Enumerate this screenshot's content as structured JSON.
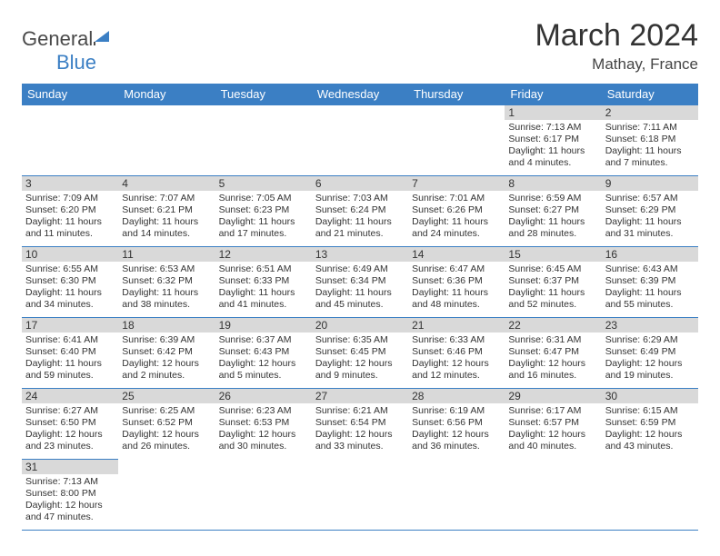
{
  "logo": {
    "text1": "General",
    "text2": "Blue"
  },
  "title": "March 2024",
  "location": "Mathay, France",
  "colors": {
    "header_bg": "#3b7fc4",
    "header_text": "#ffffff",
    "daynum_bg": "#d9d9d9",
    "border": "#3b7fc4",
    "text": "#333333"
  },
  "weekdays": [
    "Sunday",
    "Monday",
    "Tuesday",
    "Wednesday",
    "Thursday",
    "Friday",
    "Saturday"
  ],
  "weeks": [
    [
      null,
      null,
      null,
      null,
      null,
      {
        "n": "1",
        "sr": "Sunrise: 7:13 AM",
        "ss": "Sunset: 6:17 PM",
        "dl": "Daylight: 11 hours and 4 minutes."
      },
      {
        "n": "2",
        "sr": "Sunrise: 7:11 AM",
        "ss": "Sunset: 6:18 PM",
        "dl": "Daylight: 11 hours and 7 minutes."
      }
    ],
    [
      {
        "n": "3",
        "sr": "Sunrise: 7:09 AM",
        "ss": "Sunset: 6:20 PM",
        "dl": "Daylight: 11 hours and 11 minutes."
      },
      {
        "n": "4",
        "sr": "Sunrise: 7:07 AM",
        "ss": "Sunset: 6:21 PM",
        "dl": "Daylight: 11 hours and 14 minutes."
      },
      {
        "n": "5",
        "sr": "Sunrise: 7:05 AM",
        "ss": "Sunset: 6:23 PM",
        "dl": "Daylight: 11 hours and 17 minutes."
      },
      {
        "n": "6",
        "sr": "Sunrise: 7:03 AM",
        "ss": "Sunset: 6:24 PM",
        "dl": "Daylight: 11 hours and 21 minutes."
      },
      {
        "n": "7",
        "sr": "Sunrise: 7:01 AM",
        "ss": "Sunset: 6:26 PM",
        "dl": "Daylight: 11 hours and 24 minutes."
      },
      {
        "n": "8",
        "sr": "Sunrise: 6:59 AM",
        "ss": "Sunset: 6:27 PM",
        "dl": "Daylight: 11 hours and 28 minutes."
      },
      {
        "n": "9",
        "sr": "Sunrise: 6:57 AM",
        "ss": "Sunset: 6:29 PM",
        "dl": "Daylight: 11 hours and 31 minutes."
      }
    ],
    [
      {
        "n": "10",
        "sr": "Sunrise: 6:55 AM",
        "ss": "Sunset: 6:30 PM",
        "dl": "Daylight: 11 hours and 34 minutes."
      },
      {
        "n": "11",
        "sr": "Sunrise: 6:53 AM",
        "ss": "Sunset: 6:32 PM",
        "dl": "Daylight: 11 hours and 38 minutes."
      },
      {
        "n": "12",
        "sr": "Sunrise: 6:51 AM",
        "ss": "Sunset: 6:33 PM",
        "dl": "Daylight: 11 hours and 41 minutes."
      },
      {
        "n": "13",
        "sr": "Sunrise: 6:49 AM",
        "ss": "Sunset: 6:34 PM",
        "dl": "Daylight: 11 hours and 45 minutes."
      },
      {
        "n": "14",
        "sr": "Sunrise: 6:47 AM",
        "ss": "Sunset: 6:36 PM",
        "dl": "Daylight: 11 hours and 48 minutes."
      },
      {
        "n": "15",
        "sr": "Sunrise: 6:45 AM",
        "ss": "Sunset: 6:37 PM",
        "dl": "Daylight: 11 hours and 52 minutes."
      },
      {
        "n": "16",
        "sr": "Sunrise: 6:43 AM",
        "ss": "Sunset: 6:39 PM",
        "dl": "Daylight: 11 hours and 55 minutes."
      }
    ],
    [
      {
        "n": "17",
        "sr": "Sunrise: 6:41 AM",
        "ss": "Sunset: 6:40 PM",
        "dl": "Daylight: 11 hours and 59 minutes."
      },
      {
        "n": "18",
        "sr": "Sunrise: 6:39 AM",
        "ss": "Sunset: 6:42 PM",
        "dl": "Daylight: 12 hours and 2 minutes."
      },
      {
        "n": "19",
        "sr": "Sunrise: 6:37 AM",
        "ss": "Sunset: 6:43 PM",
        "dl": "Daylight: 12 hours and 5 minutes."
      },
      {
        "n": "20",
        "sr": "Sunrise: 6:35 AM",
        "ss": "Sunset: 6:45 PM",
        "dl": "Daylight: 12 hours and 9 minutes."
      },
      {
        "n": "21",
        "sr": "Sunrise: 6:33 AM",
        "ss": "Sunset: 6:46 PM",
        "dl": "Daylight: 12 hours and 12 minutes."
      },
      {
        "n": "22",
        "sr": "Sunrise: 6:31 AM",
        "ss": "Sunset: 6:47 PM",
        "dl": "Daylight: 12 hours and 16 minutes."
      },
      {
        "n": "23",
        "sr": "Sunrise: 6:29 AM",
        "ss": "Sunset: 6:49 PM",
        "dl": "Daylight: 12 hours and 19 minutes."
      }
    ],
    [
      {
        "n": "24",
        "sr": "Sunrise: 6:27 AM",
        "ss": "Sunset: 6:50 PM",
        "dl": "Daylight: 12 hours and 23 minutes."
      },
      {
        "n": "25",
        "sr": "Sunrise: 6:25 AM",
        "ss": "Sunset: 6:52 PM",
        "dl": "Daylight: 12 hours and 26 minutes."
      },
      {
        "n": "26",
        "sr": "Sunrise: 6:23 AM",
        "ss": "Sunset: 6:53 PM",
        "dl": "Daylight: 12 hours and 30 minutes."
      },
      {
        "n": "27",
        "sr": "Sunrise: 6:21 AM",
        "ss": "Sunset: 6:54 PM",
        "dl": "Daylight: 12 hours and 33 minutes."
      },
      {
        "n": "28",
        "sr": "Sunrise: 6:19 AM",
        "ss": "Sunset: 6:56 PM",
        "dl": "Daylight: 12 hours and 36 minutes."
      },
      {
        "n": "29",
        "sr": "Sunrise: 6:17 AM",
        "ss": "Sunset: 6:57 PM",
        "dl": "Daylight: 12 hours and 40 minutes."
      },
      {
        "n": "30",
        "sr": "Sunrise: 6:15 AM",
        "ss": "Sunset: 6:59 PM",
        "dl": "Daylight: 12 hours and 43 minutes."
      }
    ],
    [
      {
        "n": "31",
        "sr": "Sunrise: 7:13 AM",
        "ss": "Sunset: 8:00 PM",
        "dl": "Daylight: 12 hours and 47 minutes."
      },
      null,
      null,
      null,
      null,
      null,
      null
    ]
  ]
}
